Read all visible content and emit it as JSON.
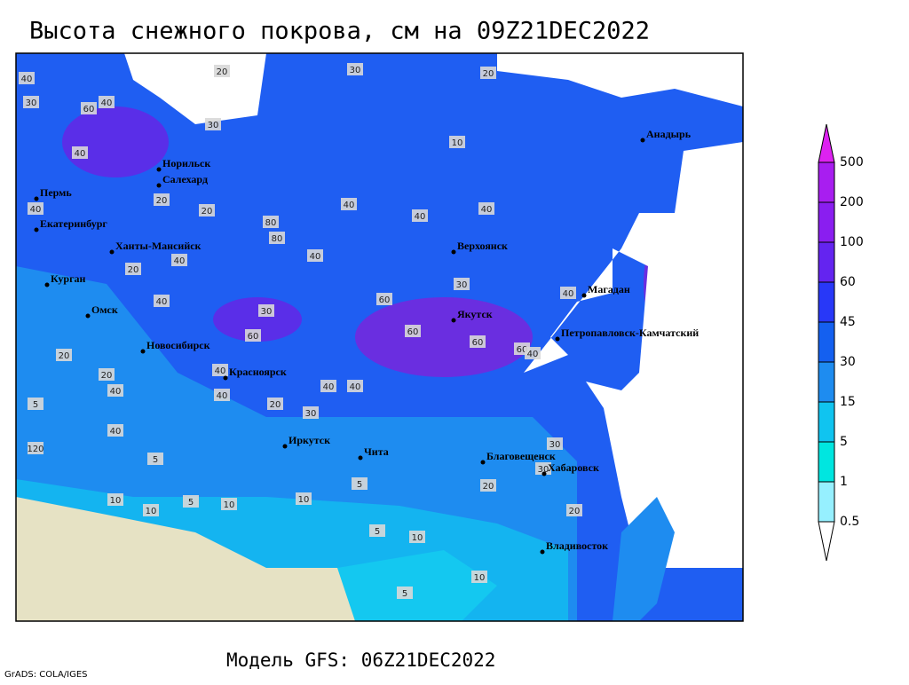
{
  "title": "Высота снежного покрова, см на 09Z21DEC2022",
  "footer": "Модель GFS: 06Z21DEC2022",
  "credit": "GrADS: COLA/IGES",
  "cities": [
    "Норильск",
    "Салехард",
    "Пермь",
    "Екатеринбург",
    "Ханты-Мансийск",
    "Курган",
    "Омск",
    "Новосибирск",
    "Красноярск",
    "Иркутск",
    "Чита",
    "Верхоянск",
    "Якутск",
    "Магадан",
    "Анадырь",
    "Петропавловск-Камчатский",
    "Благовещенск",
    "Хабаровск",
    "Владивосток"
  ],
  "contour_labels": [
    40,
    30,
    60,
    40,
    20,
    30,
    20,
    40,
    40,
    20,
    30,
    60,
    80,
    40,
    60,
    40,
    40,
    40,
    20,
    40,
    40,
    80,
    60,
    30,
    60,
    30,
    40,
    40,
    20,
    40,
    40,
    10,
    5,
    5,
    10,
    10,
    20,
    10,
    5,
    5,
    10,
    5,
    20,
    30,
    30,
    20,
    5,
    10,
    10,
    40,
    30,
    40,
    60,
    120,
    40,
    20,
    20,
    40
  ],
  "legend": {
    "levels": [
      500,
      200,
      100,
      60,
      45,
      30,
      15,
      5,
      1,
      0.5
    ],
    "colors": [
      "#dd22f0",
      "#a81ef0",
      "#8a1ef0",
      "#6424f0",
      "#2838f8",
      "#1460f0",
      "#1e8cf0",
      "#10c4f0",
      "#00e6e0",
      "#96f0ff",
      "#ffffff"
    ]
  }
}
